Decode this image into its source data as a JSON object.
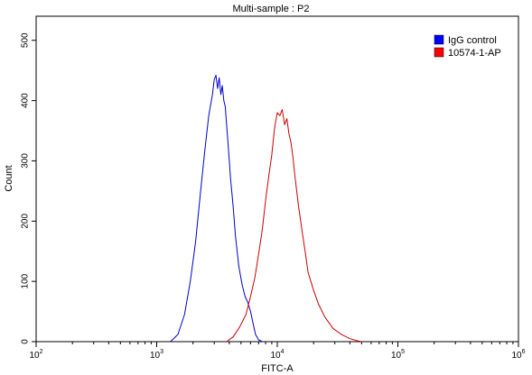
{
  "chart_data": {
    "type": "line",
    "title": "Multi-sample : P2",
    "xlabel": "FITC-A",
    "ylabel": "Count",
    "xscale": "log",
    "xlim": [
      100,
      1000000
    ],
    "ylim": [
      0,
      540
    ],
    "x_ticks": [
      {
        "value": 100,
        "base": "10",
        "exp": "2"
      },
      {
        "value": 1000,
        "base": "10",
        "exp": "3"
      },
      {
        "value": 10000,
        "base": "10",
        "exp": "4"
      },
      {
        "value": 100000,
        "base": "10",
        "exp": "5"
      },
      {
        "value": 1000000,
        "base": "10",
        "exp": "6"
      }
    ],
    "y_ticks": [
      0,
      100,
      200,
      300,
      400,
      500
    ],
    "legend_position": "top-right",
    "series": [
      {
        "name": "IgG control",
        "color": "#0000cc",
        "legend_color": "#0000ff",
        "x": [
          1300,
          1500,
          1700,
          1900,
          2100,
          2300,
          2500,
          2700,
          2900,
          3000,
          3100,
          3200,
          3300,
          3400,
          3500,
          3600,
          3700,
          3900,
          4100,
          4300,
          4500,
          4800,
          5100,
          5400,
          5700,
          6000,
          6300,
          6600,
          7000,
          7500
        ],
        "y": [
          0,
          12,
          45,
          100,
          165,
          245,
          315,
          375,
          410,
          435,
          442,
          420,
          438,
          410,
          425,
          400,
          390,
          330,
          270,
          225,
          175,
          125,
          95,
          75,
          65,
          50,
          30,
          12,
          3,
          0
        ]
      },
      {
        "name": "10574-1-AP",
        "color": "#cc0000",
        "legend_color": "#ff0000",
        "x": [
          3800,
          4300,
          4900,
          5500,
          6000,
          6500,
          7000,
          7500,
          8000,
          8500,
          9000,
          9500,
          10000,
          10500,
          11000,
          11500,
          12000,
          12500,
          13000,
          13500,
          14000,
          15000,
          16000,
          17000,
          18000,
          20000,
          22000,
          25000,
          29000,
          34000,
          40000,
          47000,
          50000
        ],
        "y": [
          0,
          8,
          25,
          45,
          75,
          105,
          145,
          185,
          235,
          275,
          310,
          355,
          380,
          375,
          385,
          360,
          370,
          345,
          330,
          305,
          275,
          225,
          185,
          150,
          115,
          85,
          62,
          40,
          22,
          12,
          5,
          1,
          0
        ]
      }
    ]
  }
}
